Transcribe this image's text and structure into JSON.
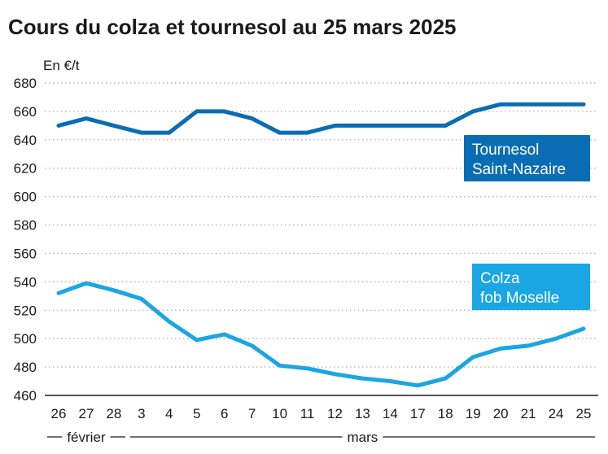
{
  "chart_data": {
    "type": "line",
    "title": "Cours du colza et tournesol au 25 mars 2025",
    "ylabel": "En €/t",
    "ylim": [
      460,
      680
    ],
    "yticks": [
      460,
      480,
      500,
      520,
      540,
      560,
      580,
      600,
      620,
      640,
      660,
      680
    ],
    "categories": [
      "26",
      "27",
      "28",
      "3",
      "4",
      "5",
      "6",
      "7",
      "10",
      "11",
      "12",
      "13",
      "14",
      "17",
      "18",
      "19",
      "20",
      "21",
      "24",
      "25"
    ],
    "month_labels": [
      {
        "label": "février",
        "from_index": 0,
        "to_index": 2
      },
      {
        "label": "mars",
        "from_index": 3,
        "to_index": 19
      }
    ],
    "grid": true,
    "series": [
      {
        "name_lines": [
          "Tournesol",
          "Saint-Nazaire"
        ],
        "color": "#0a6db3",
        "values": [
          650,
          655,
          650,
          645,
          645,
          660,
          660,
          655,
          645,
          645,
          650,
          650,
          650,
          650,
          650,
          660,
          665,
          665,
          665,
          665
        ]
      },
      {
        "name_lines": [
          "Colza",
          "fob Moselle"
        ],
        "color": "#1aa6e2",
        "values": [
          532,
          539,
          534,
          528,
          512,
          499,
          503,
          495,
          481,
          479,
          475,
          472,
          470,
          467,
          472,
          487,
          493,
          495,
          500,
          507
        ]
      }
    ]
  }
}
